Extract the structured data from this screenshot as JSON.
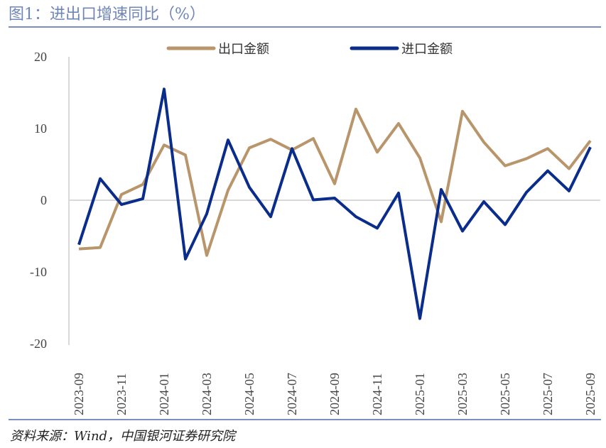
{
  "title": "图1：进出口增速同比（%）",
  "source": "资料来源：Wind，中国银河证券研究院",
  "chart_data": {
    "type": "line",
    "title": "进出口增速同比（%）",
    "xlabel": "",
    "ylabel": "",
    "ylim": [
      -20,
      20
    ],
    "yticks": [
      20,
      10,
      0,
      -10,
      -20
    ],
    "x": [
      "2023-09",
      "2023-10",
      "2023-11",
      "2023-12",
      "2024-01",
      "2024-02",
      "2024-03",
      "2024-04",
      "2024-05",
      "2024-06",
      "2024-07",
      "2024-08",
      "2024-09",
      "2024-10",
      "2024-11",
      "2024-12",
      "2025-01",
      "2025-02",
      "2025-03",
      "2025-04",
      "2025-05",
      "2025-06",
      "2025-07",
      "2025-08",
      "2025-09"
    ],
    "xtick_labels": [
      "2023-09",
      "2023-11",
      "2024-01",
      "2024-03",
      "2024-05",
      "2024-07",
      "2024-09",
      "2024-11",
      "2025-01",
      "2025-03",
      "2025-05",
      "2025-07",
      "2025-09"
    ],
    "legend_position": "top",
    "grid": false,
    "series": [
      {
        "name": "出口金额",
        "color": "#b8956a",
        "values": [
          -6.8,
          -6.6,
          0.8,
          2.2,
          7.7,
          6.3,
          -7.7,
          1.4,
          7.3,
          8.5,
          7.0,
          8.6,
          2.3,
          12.7,
          6.7,
          10.7,
          5.9,
          -3.0,
          12.4,
          8.1,
          4.8,
          5.8,
          7.2,
          4.4,
          8.3
        ]
      },
      {
        "name": "进口金额",
        "color": "#0a2d8c",
        "values": [
          -6.2,
          3.0,
          -0.6,
          0.2,
          15.5,
          -8.2,
          -1.9,
          8.4,
          1.8,
          -2.3,
          7.2,
          0.05,
          0.3,
          -2.3,
          -3.9,
          1.0,
          -16.5,
          1.5,
          -4.3,
          -0.2,
          -3.4,
          1.1,
          4.1,
          1.3,
          7.4
        ]
      }
    ]
  }
}
